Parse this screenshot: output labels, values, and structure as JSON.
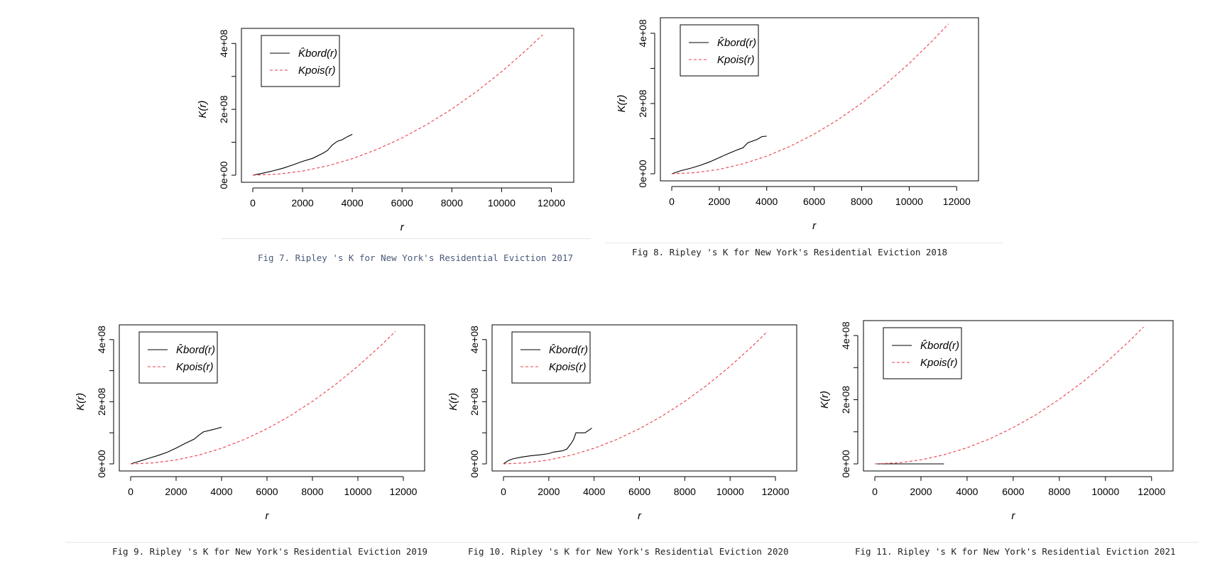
{
  "colors": {
    "observed": "#000000",
    "theoretical": "#e8404a",
    "caption_blue": "#4a5a7a",
    "caption_black": "#222222"
  },
  "chart_data": [
    {
      "type": "line",
      "caption": "Fig 7. Ripley 's K for New York's Residential Eviction 2017",
      "xlabel": "r",
      "ylabel": "K(r)",
      "xlim": [
        0,
        12000
      ],
      "ylim": [
        0,
        400000000
      ],
      "xticks": [
        "0",
        "2000",
        "4000",
        "6000",
        "8000",
        "10000",
        "12000"
      ],
      "yticks": [
        "0e+00",
        "2e+08",
        "4e+08"
      ],
      "legend": [
        "K̂bord(r)",
        "Kpois(r)"
      ],
      "series": [
        {
          "name": "K̂bord(r)",
          "style": "solid",
          "x": [
            0,
            400,
            800,
            1200,
            1600,
            2000,
            2400,
            2800,
            3000,
            3200,
            3400,
            3600,
            3800,
            4000
          ],
          "y": [
            0,
            6000000,
            13000000,
            21000000,
            31000000,
            42000000,
            51000000,
            66000000,
            75000000,
            92000000,
            103000000,
            108000000,
            117000000,
            124000000
          ]
        },
        {
          "name": "Kpois(r)",
          "style": "dashed",
          "x": [
            0,
            1000,
            2000,
            3000,
            4000,
            5000,
            6000,
            7000,
            8000,
            9000,
            10000,
            11000,
            11650
          ],
          "y": [
            0,
            3140000,
            12570000,
            28270000,
            50270000,
            78540000,
            113100000,
            153940000,
            201060000,
            254470000,
            314160000,
            380130000,
            426380000
          ]
        }
      ]
    },
    {
      "type": "line",
      "caption": "Fig 8. Ripley 's K for New York's Residential Eviction 2018",
      "xlabel": "r",
      "ylabel": "K(r)",
      "xlim": [
        0,
        12000
      ],
      "ylim": [
        0,
        400000000
      ],
      "xticks": [
        "0",
        "2000",
        "4000",
        "6000",
        "8000",
        "10000",
        "12000"
      ],
      "yticks": [
        "0e+00",
        "2e+08",
        "4e+08"
      ],
      "legend": [
        "K̂bord(r)",
        "Kpois(r)"
      ],
      "series": [
        {
          "name": "K̂bord(r)",
          "style": "solid",
          "x": [
            0,
            400,
            800,
            1200,
            1600,
            2000,
            2400,
            2800,
            3000,
            3200,
            3600,
            3800,
            4000
          ],
          "y": [
            0,
            9000000,
            16000000,
            24000000,
            34000000,
            46000000,
            58000000,
            69000000,
            74000000,
            88000000,
            98000000,
            106000000,
            107000000
          ]
        },
        {
          "name": "Kpois(r)",
          "style": "dashed",
          "x": [
            0,
            1000,
            2000,
            3000,
            4000,
            5000,
            6000,
            7000,
            8000,
            9000,
            10000,
            11000,
            11650
          ],
          "y": [
            0,
            3140000,
            12570000,
            28270000,
            50270000,
            78540000,
            113100000,
            153940000,
            201060000,
            254470000,
            314160000,
            380130000,
            426380000
          ]
        }
      ]
    },
    {
      "type": "line",
      "caption": "Fig 9. Ripley 's K for New York's Residential Eviction 2019",
      "xlabel": "r",
      "ylabel": "K(r)",
      "xlim": [
        0,
        12000
      ],
      "ylim": [
        0,
        400000000
      ],
      "xticks": [
        "0",
        "2000",
        "4000",
        "6000",
        "8000",
        "10000",
        "12000"
      ],
      "yticks": [
        "0e+00",
        "2e+08",
        "4e+08"
      ],
      "legend": [
        "K̂bord(r)",
        "Kpois(r)"
      ],
      "series": [
        {
          "name": "K̂bord(r)",
          "style": "solid",
          "x": [
            0,
            400,
            800,
            1200,
            1600,
            2000,
            2400,
            2800,
            3000,
            3200,
            3600,
            3800,
            4000
          ],
          "y": [
            0,
            9000000,
            18000000,
            27000000,
            37000000,
            51000000,
            66000000,
            80000000,
            92000000,
            103000000,
            110000000,
            114000000,
            118000000
          ]
        },
        {
          "name": "Kpois(r)",
          "style": "dashed",
          "x": [
            0,
            1000,
            2000,
            3000,
            4000,
            5000,
            6000,
            7000,
            8000,
            9000,
            10000,
            11000,
            11650
          ],
          "y": [
            0,
            3140000,
            12570000,
            28270000,
            50270000,
            78540000,
            113100000,
            153940000,
            201060000,
            254470000,
            314160000,
            380130000,
            426380000
          ]
        }
      ]
    },
    {
      "type": "line",
      "caption": "Fig 10. Ripley 's K for New York's Residential Eviction 2020",
      "xlabel": "r",
      "ylabel": "K(r)",
      "xlim": [
        0,
        12000
      ],
      "ylim": [
        0,
        400000000
      ],
      "xticks": [
        "0",
        "2000",
        "4000",
        "6000",
        "8000",
        "10000",
        "12000"
      ],
      "yticks": [
        "0e+00",
        "2e+08",
        "4e+08"
      ],
      "legend": [
        "K̂bord(r)",
        "Kpois(r)"
      ],
      "series": [
        {
          "name": "K̂bord(r)",
          "style": "solid",
          "x": [
            0,
            200,
            400,
            800,
            1200,
            1600,
            2000,
            2200,
            2600,
            2800,
            3000,
            3100,
            3200,
            3400,
            3600,
            3800,
            3900
          ],
          "y": [
            0,
            10000000,
            16000000,
            22000000,
            26000000,
            29000000,
            33000000,
            38000000,
            42000000,
            48000000,
            67000000,
            80000000,
            100000000,
            100000000,
            100000000,
            110000000,
            115000000
          ]
        },
        {
          "name": "Kpois(r)",
          "style": "dashed",
          "x": [
            0,
            1000,
            2000,
            3000,
            4000,
            5000,
            6000,
            7000,
            8000,
            9000,
            10000,
            11000,
            11650
          ],
          "y": [
            0,
            3140000,
            12570000,
            28270000,
            50270000,
            78540000,
            113100000,
            153940000,
            201060000,
            254470000,
            314160000,
            380130000,
            426380000
          ]
        }
      ]
    },
    {
      "type": "line",
      "caption": "Fig 11. Ripley 's K for New York's Residential Eviction 2021",
      "xlabel": "r",
      "ylabel": "K(r)",
      "xlim": [
        0,
        12000
      ],
      "ylim": [
        0,
        400000000
      ],
      "xticks": [
        "0",
        "2000",
        "4000",
        "6000",
        "8000",
        "10000",
        "12000"
      ],
      "yticks": [
        "0e+00",
        "2e+08",
        "4e+08"
      ],
      "legend": [
        "K̂bord(r)",
        "Kpois(r)"
      ],
      "series": [
        {
          "name": "K̂bord(r)",
          "style": "solid",
          "x": [
            0,
            1000,
            2000,
            3000
          ],
          "y": [
            0,
            0,
            0,
            0
          ]
        },
        {
          "name": "Kpois(r)",
          "style": "dashed",
          "x": [
            0,
            1000,
            2000,
            3000,
            4000,
            5000,
            6000,
            7000,
            8000,
            9000,
            10000,
            11000,
            11650
          ],
          "y": [
            0,
            3140000,
            12570000,
            28270000,
            50270000,
            78540000,
            113100000,
            153940000,
            201060000,
            254470000,
            314160000,
            380130000,
            426380000
          ]
        }
      ]
    }
  ]
}
